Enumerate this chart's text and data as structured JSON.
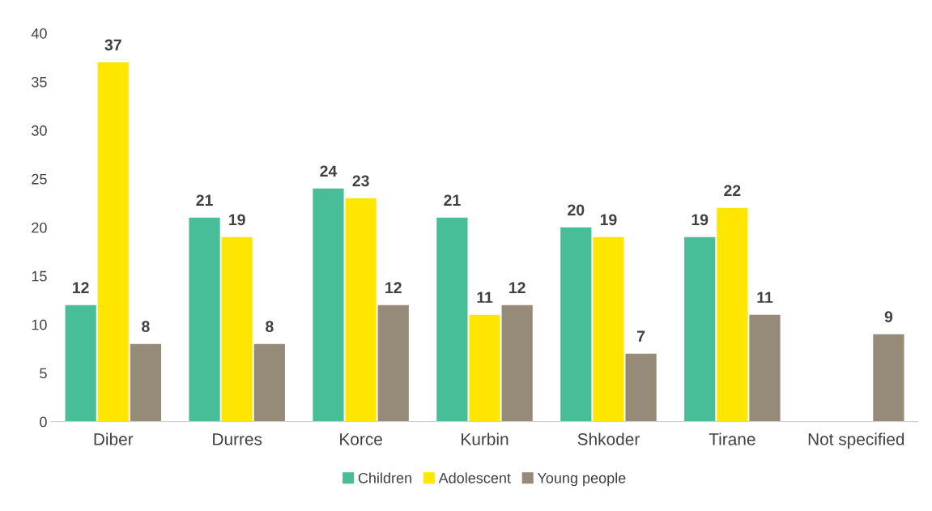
{
  "chart_data": {
    "type": "bar",
    "categories": [
      "Diber",
      "Durres",
      "Korce",
      "Kurbin",
      "Shkoder",
      "Tirane",
      "Not specified"
    ],
    "series": [
      {
        "name": "Children",
        "color": "#47bd98",
        "values": [
          12,
          21,
          24,
          21,
          20,
          19,
          null
        ]
      },
      {
        "name": "Adolescent",
        "color": "#ffe600",
        "values": [
          37,
          19,
          23,
          11,
          19,
          22,
          null
        ]
      },
      {
        "name": "Young people",
        "color": "#968a78",
        "values": [
          8,
          8,
          12,
          12,
          7,
          11,
          9
        ]
      }
    ],
    "ylim": [
      0,
      40
    ],
    "yticks": [
      0,
      5,
      10,
      15,
      20,
      25,
      30,
      35,
      40
    ],
    "grid": false,
    "legend": "bottom",
    "data_labels": true
  }
}
